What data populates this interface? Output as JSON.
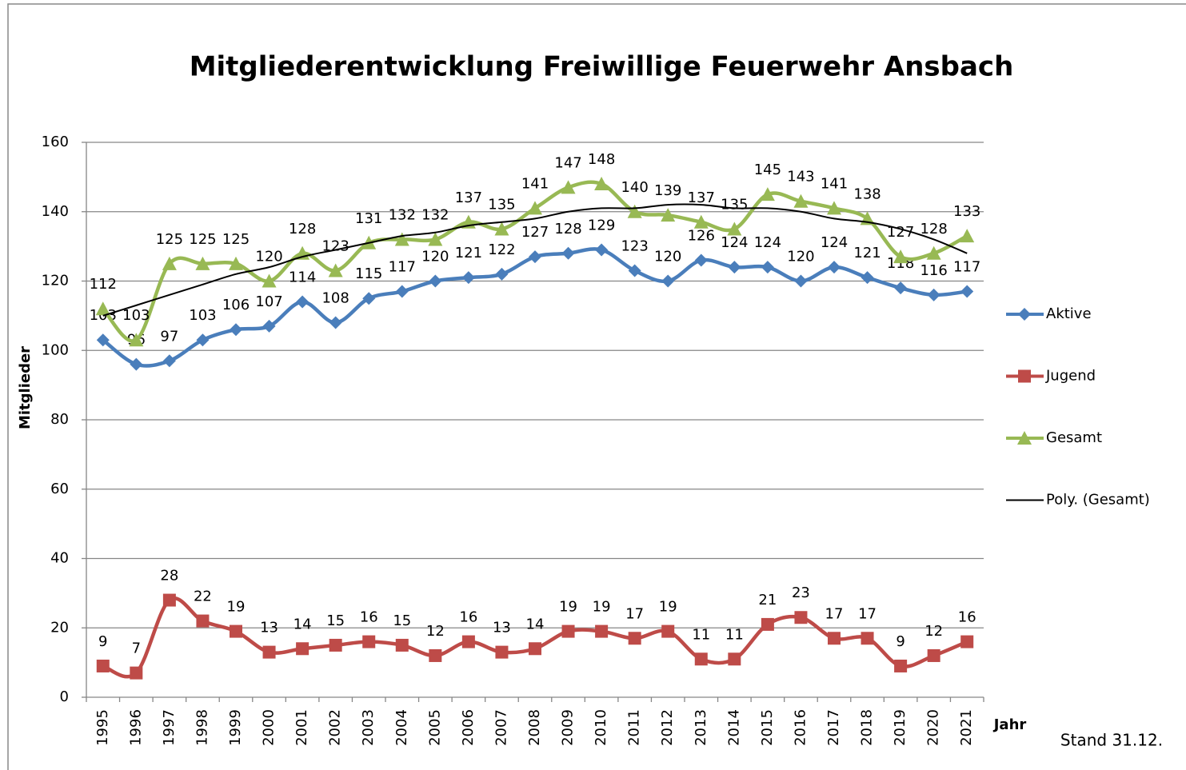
{
  "chart_data": {
    "type": "line",
    "title": "Mitgliederentwicklung Freiwillige Feuerwehr Ansbach",
    "x_label": "Jahr",
    "y_label": "Mitglieder",
    "annotation": "Stand 31.12.",
    "categories": [
      "1995",
      "1996",
      "1997",
      "1998",
      "1999",
      "2000",
      "2001",
      "2002",
      "2003",
      "2004",
      "2005",
      "2006",
      "2007",
      "2008",
      "2009",
      "2010",
      "2011",
      "2012",
      "2013",
      "2014",
      "2015",
      "2016",
      "2017",
      "2018",
      "2019",
      "2020",
      "2021"
    ],
    "series": [
      {
        "name": "Aktive",
        "color": "#4a7ebb",
        "marker": "diamond",
        "data_labels": true,
        "values": [
          103,
          96,
          97,
          103,
          106,
          107,
          114,
          108,
          115,
          117,
          120,
          121,
          122,
          127,
          128,
          129,
          123,
          120,
          126,
          124,
          124,
          120,
          124,
          121,
          118,
          116,
          117
        ]
      },
      {
        "name": "Jugend",
        "color": "#be4b48",
        "marker": "square",
        "data_labels": true,
        "values": [
          9,
          7,
          28,
          22,
          19,
          13,
          14,
          15,
          16,
          15,
          12,
          16,
          13,
          14,
          19,
          19,
          17,
          19,
          11,
          11,
          21,
          23,
          17,
          17,
          9,
          12,
          16
        ]
      },
      {
        "name": "Gesamt",
        "color": "#98b954",
        "marker": "triangle",
        "data_labels": true,
        "values": [
          112,
          103,
          125,
          125,
          125,
          120,
          128,
          123,
          131,
          132,
          132,
          137,
          135,
          141,
          147,
          148,
          140,
          139,
          137,
          135,
          145,
          143,
          141,
          138,
          127,
          128,
          133
        ]
      },
      {
        "name": "Poly. (Gesamt)",
        "color": "#000000",
        "marker": "none",
        "data_labels": false,
        "values": [
          110,
          113,
          116,
          119,
          122,
          124,
          127,
          129,
          131,
          133,
          134,
          136,
          137,
          138,
          140,
          141,
          141,
          142,
          142,
          141,
          141,
          140,
          138,
          137,
          135,
          132,
          128
        ]
      }
    ],
    "ylim": [
      0,
      160
    ],
    "yticks": [
      0,
      20,
      40,
      60,
      80,
      100,
      120,
      140,
      160
    ],
    "grid": true,
    "legend": "right"
  }
}
